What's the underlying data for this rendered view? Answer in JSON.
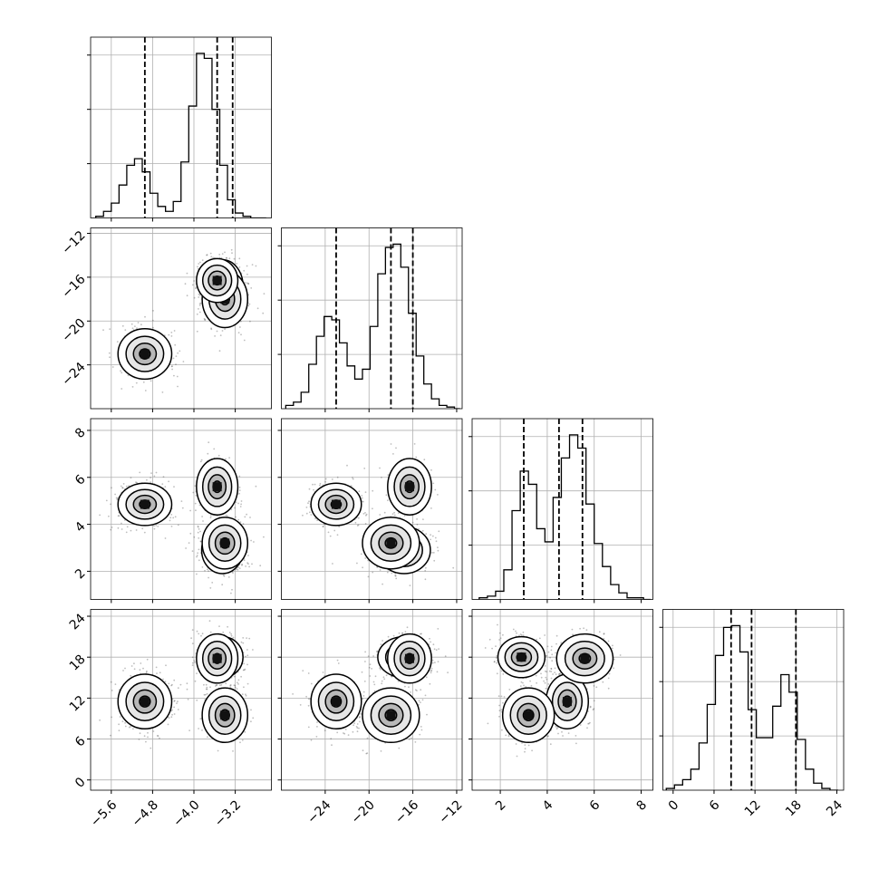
{
  "chart_data": {
    "type": "corner",
    "grid": true,
    "params": [
      {
        "lim": [
          -6.0,
          -2.5
        ],
        "ticks": [
          -5.6,
          -4.8,
          -4.0,
          -3.2
        ],
        "tick_labels": [
          "−5.6",
          "−4.8",
          "−4.0",
          "−3.2"
        ],
        "quantiles": [
          -4.95,
          -3.55,
          -3.25
        ]
      },
      {
        "lim": [
          -28.0,
          -11.5
        ],
        "ticks": [
          -24,
          -20,
          -16,
          -12
        ],
        "tick_labels": [
          "−24",
          "−20",
          "−16",
          "−12"
        ],
        "quantiles": [
          -23.0,
          -18.0,
          -16.0
        ]
      },
      {
        "lim": [
          0.8,
          8.5
        ],
        "ticks": [
          2,
          4,
          6,
          8
        ],
        "tick_labels": [
          "2",
          "4",
          "6",
          "8"
        ],
        "quantiles": [
          3.0,
          4.5,
          5.5
        ]
      },
      {
        "lim": [
          -1.5,
          25.0
        ],
        "ticks": [
          0,
          6,
          12,
          18,
          24
        ],
        "tick_labels": [
          "0",
          "6",
          "12",
          "18",
          "24"
        ],
        "quantiles": [
          8.5,
          11.5,
          18.0
        ]
      }
    ],
    "diagonal": [
      {
        "edges": [
          -5.9,
          -5.75,
          -5.6,
          -5.45,
          -5.3,
          -5.15,
          -5.0,
          -4.85,
          -4.7,
          -4.55,
          -4.4,
          -4.25,
          -4.1,
          -3.95,
          -3.8,
          -3.65,
          -3.5,
          -3.35,
          -3.2,
          -3.05,
          -2.9,
          -2.75,
          -2.6
        ],
        "counts": [
          0.01,
          0.04,
          0.09,
          0.2,
          0.32,
          0.36,
          0.28,
          0.15,
          0.07,
          0.04,
          0.1,
          0.34,
          0.68,
          1.0,
          0.97,
          0.66,
          0.32,
          0.11,
          0.03,
          0.01,
          0.0,
          0.0
        ]
      },
      {
        "edges": [
          -27.6,
          -26.9,
          -26.2,
          -25.5,
          -24.8,
          -24.1,
          -23.4,
          -22.7,
          -22.0,
          -21.3,
          -20.6,
          -19.9,
          -19.2,
          -18.5,
          -17.8,
          -17.1,
          -16.4,
          -15.7,
          -15.0,
          -14.3,
          -13.6,
          -12.9,
          -12.2,
          -11.7
        ],
        "counts": [
          0.02,
          0.04,
          0.1,
          0.27,
          0.44,
          0.56,
          0.54,
          0.4,
          0.26,
          0.18,
          0.24,
          0.5,
          0.82,
          0.98,
          1.0,
          0.86,
          0.58,
          0.32,
          0.15,
          0.06,
          0.02,
          0.01,
          0.0
        ]
      },
      {
        "edges": [
          1.1,
          1.45,
          1.8,
          2.15,
          2.5,
          2.85,
          3.2,
          3.55,
          3.9,
          4.25,
          4.6,
          4.95,
          5.3,
          5.65,
          6.0,
          6.35,
          6.7,
          7.05,
          7.4,
          7.75,
          8.1,
          8.4
        ],
        "counts": [
          0.01,
          0.02,
          0.05,
          0.18,
          0.54,
          0.78,
          0.7,
          0.43,
          0.35,
          0.62,
          0.86,
          1.0,
          0.92,
          0.58,
          0.34,
          0.2,
          0.09,
          0.04,
          0.01,
          0.01,
          0.0
        ]
      },
      {
        "edges": [
          -1.0,
          0.2,
          1.4,
          2.6,
          3.8,
          5.0,
          6.2,
          7.4,
          8.6,
          9.8,
          11.0,
          12.2,
          13.4,
          14.6,
          15.8,
          17.0,
          18.2,
          19.4,
          20.6,
          21.8,
          23.0,
          24.2
        ],
        "counts": [
          0.01,
          0.03,
          0.06,
          0.12,
          0.27,
          0.49,
          0.77,
          0.93,
          0.94,
          0.79,
          0.46,
          0.3,
          0.3,
          0.48,
          0.66,
          0.56,
          0.29,
          0.12,
          0.04,
          0.01,
          0.0
        ]
      }
    ],
    "modes": [
      {
        "center": [
          -4.95,
          -23.0,
          4.85,
          11.5
        ],
        "std": [
          0.26,
          1.15,
          0.45,
          2.0
        ],
        "weight": 0.3
      },
      {
        "center": [
          -3.45,
          -16.8,
          2.9,
          18.0
        ],
        "std": [
          0.2,
          1.2,
          0.5,
          1.5
        ],
        "weight": 0.26
      },
      {
        "center": [
          -3.4,
          -18.0,
          3.2,
          9.5
        ],
        "std": [
          0.22,
          1.3,
          0.55,
          2.0
        ],
        "weight": 0.24
      },
      {
        "center": [
          -3.55,
          -16.3,
          5.6,
          17.8
        ],
        "std": [
          0.2,
          1.0,
          0.6,
          1.8
        ],
        "weight": 0.2
      }
    ]
  }
}
